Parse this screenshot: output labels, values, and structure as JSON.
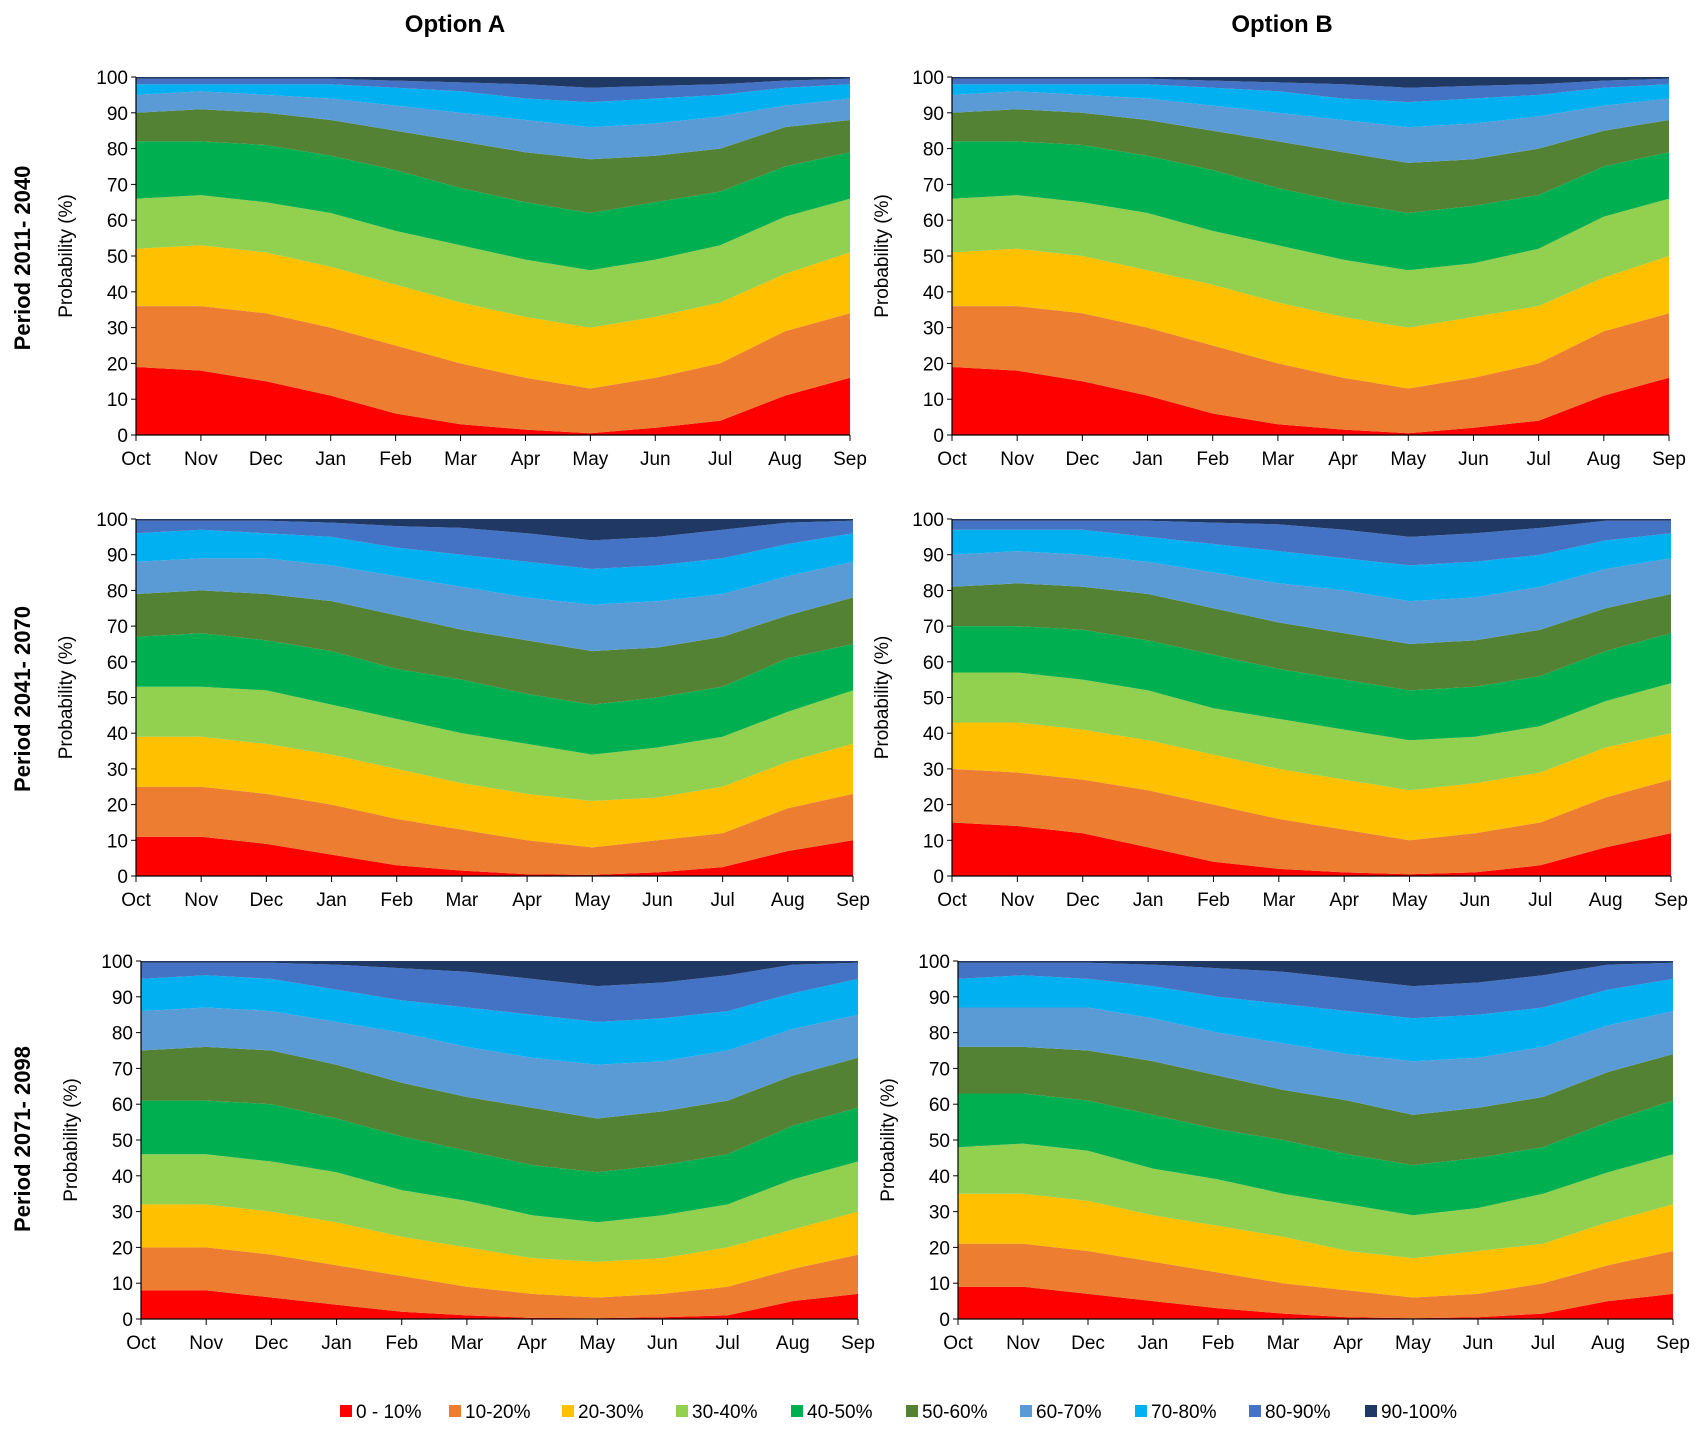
{
  "column_titles": [
    "Option A",
    "Option B"
  ],
  "row_labels": [
    "Period 2011- 2040",
    "Period 2041- 2070",
    "Period 2071- 2098"
  ],
  "ylabel": "Probability (%)",
  "months": [
    "Oct",
    "Nov",
    "Dec",
    "Jan",
    "Feb",
    "Mar",
    "Apr",
    "May",
    "Jun",
    "Jul",
    "Aug",
    "Sep"
  ],
  "yticks": [
    0,
    10,
    20,
    30,
    40,
    50,
    60,
    70,
    80,
    90,
    100
  ],
  "legend": [
    {
      "label": "0 - 10%",
      "color": "#ff0000"
    },
    {
      "label": "10-20%",
      "color": "#ed7d31"
    },
    {
      "label": "20-30%",
      "color": "#ffc000"
    },
    {
      "label": "30-40%",
      "color": "#92d050"
    },
    {
      "label": "40-50%",
      "color": "#00b050"
    },
    {
      "label": "50-60%",
      "color": "#548235"
    },
    {
      "label": "60-70%",
      "color": "#5b9bd5"
    },
    {
      "label": "70-80%",
      "color": "#00b0f0"
    },
    {
      "label": "80-90%",
      "color": "#4472c4"
    },
    {
      "label": "90-100%",
      "color": "#203864"
    }
  ],
  "chart_data": [
    {
      "type": "area",
      "stacking": "cumulative",
      "option": "Option A",
      "period": "Period 2011- 2040",
      "categories": [
        "Oct",
        "Nov",
        "Dec",
        "Jan",
        "Feb",
        "Mar",
        "Apr",
        "May",
        "Jun",
        "Jul",
        "Aug",
        "Sep"
      ],
      "ylim": [
        0,
        100
      ],
      "ylabel": "Probability (%)",
      "boundaries": [
        [
          19,
          18,
          15,
          11,
          6,
          3,
          1.5,
          0.5,
          2,
          4,
          11,
          16
        ],
        [
          36,
          36,
          34,
          30,
          25,
          20,
          16,
          13,
          16,
          20,
          29,
          34
        ],
        [
          52,
          53,
          51,
          47,
          42,
          37,
          33,
          30,
          33,
          37,
          45,
          51
        ],
        [
          66,
          67,
          65,
          62,
          57,
          53,
          49,
          46,
          49,
          53,
          61,
          66
        ],
        [
          82,
          82,
          81,
          78,
          74,
          69,
          65,
          62,
          65,
          68,
          75,
          79
        ],
        [
          90,
          91,
          90,
          88,
          85,
          82,
          79,
          77,
          78,
          80,
          86,
          88
        ],
        [
          95,
          96,
          95,
          94,
          92,
          90,
          88,
          86,
          87,
          89,
          92,
          94
        ],
        [
          98,
          98,
          98,
          98,
          97,
          96,
          94,
          93,
          94,
          95,
          97,
          98
        ],
        [
          99.5,
          99.5,
          99.5,
          99.5,
          99,
          98.5,
          98,
          97,
          97.5,
          98,
          99,
          99.5
        ],
        [
          100,
          100,
          100,
          100,
          100,
          100,
          100,
          100,
          100,
          100,
          100,
          100
        ]
      ]
    },
    {
      "type": "area",
      "stacking": "cumulative",
      "option": "Option B",
      "period": "Period 2011- 2040",
      "categories": [
        "Oct",
        "Nov",
        "Dec",
        "Jan",
        "Feb",
        "Mar",
        "Apr",
        "May",
        "Jun",
        "Jul",
        "Aug",
        "Sep"
      ],
      "ylim": [
        0,
        100
      ],
      "ylabel": "Probability (%)",
      "boundaries": [
        [
          19,
          18,
          15,
          11,
          6,
          3,
          1.5,
          0.5,
          2,
          4,
          11,
          16
        ],
        [
          36,
          36,
          34,
          30,
          25,
          20,
          16,
          13,
          16,
          20,
          29,
          34
        ],
        [
          51,
          52,
          50,
          46,
          42,
          37,
          33,
          30,
          33,
          36,
          44,
          50
        ],
        [
          66,
          67,
          65,
          62,
          57,
          53,
          49,
          46,
          48,
          52,
          61,
          66
        ],
        [
          82,
          82,
          81,
          78,
          74,
          69,
          65,
          62,
          64,
          67,
          75,
          79
        ],
        [
          90,
          91,
          90,
          88,
          85,
          82,
          79,
          76,
          77,
          80,
          85,
          88
        ],
        [
          95,
          96,
          95,
          94,
          92,
          90,
          88,
          86,
          87,
          89,
          92,
          94
        ],
        [
          98,
          98,
          98,
          98,
          97,
          96,
          94,
          93,
          94,
          95,
          97,
          98
        ],
        [
          99.5,
          99.5,
          99.5,
          99.5,
          99,
          98.5,
          98,
          97,
          97.5,
          98,
          99,
          99.5
        ],
        [
          100,
          100,
          100,
          100,
          100,
          100,
          100,
          100,
          100,
          100,
          100,
          100
        ]
      ]
    },
    {
      "type": "area",
      "stacking": "cumulative",
      "option": "Option A",
      "period": "Period 2041- 2070",
      "categories": [
        "Oct",
        "Nov",
        "Dec",
        "Jan",
        "Feb",
        "Mar",
        "Apr",
        "May",
        "Jun",
        "Jul",
        "Aug",
        "Sep"
      ],
      "ylim": [
        0,
        100
      ],
      "ylabel": "Probability (%)",
      "boundaries": [
        [
          11,
          11,
          9,
          6,
          3,
          1.5,
          0.5,
          0.3,
          1,
          2.5,
          7,
          10
        ],
        [
          25,
          25,
          23,
          20,
          16,
          13,
          10,
          8,
          10,
          12,
          19,
          23
        ],
        [
          39,
          39,
          37,
          34,
          30,
          26,
          23,
          21,
          22,
          25,
          32,
          37
        ],
        [
          53,
          53,
          52,
          48,
          44,
          40,
          37,
          34,
          36,
          39,
          46,
          52
        ],
        [
          67,
          68,
          66,
          63,
          58,
          55,
          51,
          48,
          50,
          53,
          61,
          65
        ],
        [
          79,
          80,
          79,
          77,
          73,
          69,
          66,
          63,
          64,
          67,
          73,
          78
        ],
        [
          88,
          89,
          89,
          87,
          84,
          81,
          78,
          76,
          77,
          79,
          84,
          88
        ],
        [
          96,
          97,
          96,
          95,
          92,
          90,
          88,
          86,
          87,
          89,
          93,
          96
        ],
        [
          99.5,
          99.5,
          99.5,
          99,
          98,
          97.5,
          96,
          94,
          95,
          97,
          99,
          99.5
        ],
        [
          100,
          100,
          100,
          100,
          100,
          100,
          100,
          100,
          100,
          100,
          100,
          100
        ]
      ]
    },
    {
      "type": "area",
      "stacking": "cumulative",
      "option": "Option B",
      "period": "Period 2041- 2070",
      "categories": [
        "Oct",
        "Nov",
        "Dec",
        "Jan",
        "Feb",
        "Mar",
        "Apr",
        "May",
        "Jun",
        "Jul",
        "Aug",
        "Sep"
      ],
      "ylim": [
        0,
        100
      ],
      "ylabel": "Probability (%)",
      "boundaries": [
        [
          15,
          14,
          12,
          8,
          4,
          2,
          1,
          0.5,
          1,
          3,
          8,
          12
        ],
        [
          30,
          29,
          27,
          24,
          20,
          16,
          13,
          10,
          12,
          15,
          22,
          27
        ],
        [
          43,
          43,
          41,
          38,
          34,
          30,
          27,
          24,
          26,
          29,
          36,
          40
        ],
        [
          57,
          57,
          55,
          52,
          47,
          44,
          41,
          38,
          39,
          42,
          49,
          54
        ],
        [
          70,
          70,
          69,
          66,
          62,
          58,
          55,
          52,
          53,
          56,
          63,
          68
        ],
        [
          81,
          82,
          81,
          79,
          75,
          71,
          68,
          65,
          66,
          69,
          75,
          79
        ],
        [
          90,
          91,
          90,
          88,
          85,
          82,
          80,
          77,
          78,
          81,
          86,
          89
        ],
        [
          97,
          97,
          97,
          95,
          93,
          91,
          89,
          87,
          88,
          90,
          94,
          96
        ],
        [
          99.5,
          99.5,
          99.5,
          99.5,
          99,
          98.5,
          97,
          95,
          96,
          97.5,
          99.5,
          99.5
        ],
        [
          100,
          100,
          100,
          100,
          100,
          100,
          100,
          100,
          100,
          100,
          100,
          100
        ]
      ]
    },
    {
      "type": "area",
      "stacking": "cumulative",
      "option": "Option A",
      "period": "Period 2071- 2098",
      "categories": [
        "Oct",
        "Nov",
        "Dec",
        "Jan",
        "Feb",
        "Mar",
        "Apr",
        "May",
        "Jun",
        "Jul",
        "Aug",
        "Sep"
      ],
      "ylim": [
        0,
        100
      ],
      "ylabel": "Probability (%)",
      "boundaries": [
        [
          8,
          8,
          6,
          4,
          2,
          1,
          0.3,
          0.2,
          0.5,
          1,
          5,
          7
        ],
        [
          20,
          20,
          18,
          15,
          12,
          9,
          7,
          6,
          7,
          9,
          14,
          18
        ],
        [
          32,
          32,
          30,
          27,
          23,
          20,
          17,
          16,
          17,
          20,
          25,
          30
        ],
        [
          46,
          46,
          44,
          41,
          36,
          33,
          29,
          27,
          29,
          32,
          39,
          44
        ],
        [
          61,
          61,
          60,
          56,
          51,
          47,
          43,
          41,
          43,
          46,
          54,
          59
        ],
        [
          75,
          76,
          75,
          71,
          66,
          62,
          59,
          56,
          58,
          61,
          68,
          73
        ],
        [
          86,
          87,
          86,
          83,
          80,
          76,
          73,
          71,
          72,
          75,
          81,
          85
        ],
        [
          95,
          96,
          95,
          92,
          89,
          87,
          85,
          83,
          84,
          86,
          91,
          95
        ],
        [
          99.5,
          99.5,
          99.5,
          99,
          98,
          97,
          95,
          93,
          94,
          96,
          99,
          99.5
        ],
        [
          100,
          100,
          100,
          100,
          100,
          100,
          100,
          100,
          100,
          100,
          100,
          100
        ]
      ]
    },
    {
      "type": "area",
      "stacking": "cumulative",
      "option": "Option B",
      "period": "Period 2071- 2098",
      "categories": [
        "Oct",
        "Nov",
        "Dec",
        "Jan",
        "Feb",
        "Mar",
        "Apr",
        "May",
        "Jun",
        "Jul",
        "Aug",
        "Sep"
      ],
      "ylim": [
        0,
        100
      ],
      "ylabel": "Probability (%)",
      "boundaries": [
        [
          9,
          9,
          7,
          5,
          3,
          1.5,
          0.5,
          0.2,
          0.5,
          1.5,
          5,
          7
        ],
        [
          21,
          21,
          19,
          16,
          13,
          10,
          8,
          6,
          7,
          10,
          15,
          19
        ],
        [
          35,
          35,
          33,
          29,
          26,
          23,
          19,
          17,
          19,
          21,
          27,
          32
        ],
        [
          48,
          49,
          47,
          42,
          39,
          35,
          32,
          29,
          31,
          35,
          41,
          46
        ],
        [
          63,
          63,
          61,
          57,
          53,
          50,
          46,
          43,
          45,
          48,
          55,
          61
        ],
        [
          76,
          76,
          75,
          72,
          68,
          64,
          61,
          57,
          59,
          62,
          69,
          74
        ],
        [
          87,
          87,
          87,
          84,
          80,
          77,
          74,
          72,
          73,
          76,
          82,
          86
        ],
        [
          95,
          96,
          95,
          93,
          90,
          88,
          86,
          84,
          85,
          87,
          92,
          95
        ],
        [
          99.5,
          99.5,
          99.5,
          99,
          98,
          97,
          95,
          93,
          94,
          96,
          99,
          99.5
        ],
        [
          100,
          100,
          100,
          100,
          100,
          100,
          100,
          100,
          100,
          100,
          100,
          100
        ]
      ]
    }
  ]
}
